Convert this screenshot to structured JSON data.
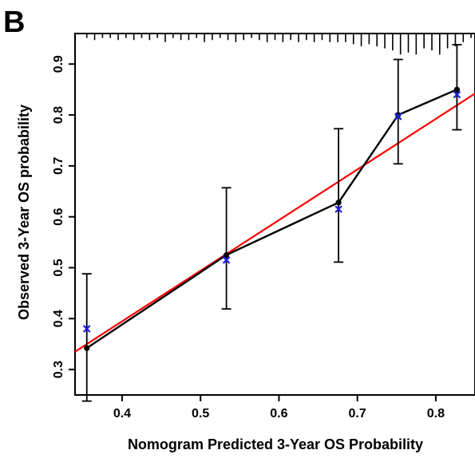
{
  "panel_label": "B",
  "chart_data": {
    "type": "line",
    "title": "",
    "xlabel": "Nomogram Predicted 3-Year OS Probability",
    "ylabel": "Observed 3-Year OS probability",
    "xlim": [
      0.34,
      0.85
    ],
    "ylim": [
      0.25,
      0.96
    ],
    "xticks": [
      0.4,
      0.5,
      0.6,
      0.7,
      0.8
    ],
    "yticks": [
      0.3,
      0.4,
      0.5,
      0.6,
      0.7,
      0.8,
      0.9
    ],
    "grid": false,
    "legend": "none",
    "reference_line": {
      "from": [
        0.34,
        0.335
      ],
      "to": [
        0.85,
        0.842
      ],
      "color": "#ff0000"
    },
    "series": [
      {
        "kind": "observed-mean",
        "color": "#000000",
        "points": [
          {
            "x": 0.355,
            "y": 0.342,
            "ci_low": 0.238,
            "ci_high": 0.488
          },
          {
            "x": 0.533,
            "y": 0.525,
            "ci_low": 0.419,
            "ci_high": 0.657
          },
          {
            "x": 0.676,
            "y": 0.628,
            "ci_low": 0.511,
            "ci_high": 0.773
          },
          {
            "x": 0.752,
            "y": 0.8,
            "ci_low": 0.704,
            "ci_high": 0.909
          },
          {
            "x": 0.827,
            "y": 0.85,
            "ci_low": 0.771,
            "ci_high": 0.938
          }
        ]
      },
      {
        "kind": "bias-corrected",
        "color": "#1f1fe0",
        "marker": "x",
        "points": [
          {
            "x": 0.355,
            "y": 0.38
          },
          {
            "x": 0.533,
            "y": 0.515
          },
          {
            "x": 0.676,
            "y": 0.615
          },
          {
            "x": 0.752,
            "y": 0.797
          },
          {
            "x": 0.827,
            "y": 0.84
          }
        ]
      }
    ],
    "rug": [
      {
        "x": 0.355,
        "n": 1
      },
      {
        "x": 0.365,
        "n": 2
      },
      {
        "x": 0.375,
        "n": 1
      },
      {
        "x": 0.385,
        "n": 1
      },
      {
        "x": 0.395,
        "n": 2
      },
      {
        "x": 0.405,
        "n": 1
      },
      {
        "x": 0.415,
        "n": 2
      },
      {
        "x": 0.425,
        "n": 1
      },
      {
        "x": 0.435,
        "n": 2
      },
      {
        "x": 0.445,
        "n": 1
      },
      {
        "x": 0.455,
        "n": 3
      },
      {
        "x": 0.465,
        "n": 1
      },
      {
        "x": 0.475,
        "n": 2
      },
      {
        "x": 0.485,
        "n": 2
      },
      {
        "x": 0.495,
        "n": 1
      },
      {
        "x": 0.505,
        "n": 3
      },
      {
        "x": 0.515,
        "n": 2
      },
      {
        "x": 0.525,
        "n": 1
      },
      {
        "x": 0.535,
        "n": 2
      },
      {
        "x": 0.545,
        "n": 3
      },
      {
        "x": 0.555,
        "n": 2
      },
      {
        "x": 0.565,
        "n": 1
      },
      {
        "x": 0.575,
        "n": 2
      },
      {
        "x": 0.585,
        "n": 3
      },
      {
        "x": 0.595,
        "n": 2
      },
      {
        "x": 0.605,
        "n": 3
      },
      {
        "x": 0.615,
        "n": 2
      },
      {
        "x": 0.625,
        "n": 3
      },
      {
        "x": 0.635,
        "n": 2
      },
      {
        "x": 0.645,
        "n": 3
      },
      {
        "x": 0.655,
        "n": 2
      },
      {
        "x": 0.665,
        "n": 3
      },
      {
        "x": 0.675,
        "n": 3
      },
      {
        "x": 0.685,
        "n": 3
      },
      {
        "x": 0.695,
        "n": 4
      },
      {
        "x": 0.705,
        "n": 5
      },
      {
        "x": 0.715,
        "n": 4
      },
      {
        "x": 0.725,
        "n": 5
      },
      {
        "x": 0.735,
        "n": 6
      },
      {
        "x": 0.745,
        "n": 7
      },
      {
        "x": 0.755,
        "n": 9
      },
      {
        "x": 0.765,
        "n": 8
      },
      {
        "x": 0.775,
        "n": 9
      },
      {
        "x": 0.785,
        "n": 6
      },
      {
        "x": 0.795,
        "n": 7
      },
      {
        "x": 0.805,
        "n": 9
      },
      {
        "x": 0.815,
        "n": 6
      },
      {
        "x": 0.825,
        "n": 5
      },
      {
        "x": 0.835,
        "n": 3
      },
      {
        "x": 0.845,
        "n": 1
      }
    ]
  }
}
